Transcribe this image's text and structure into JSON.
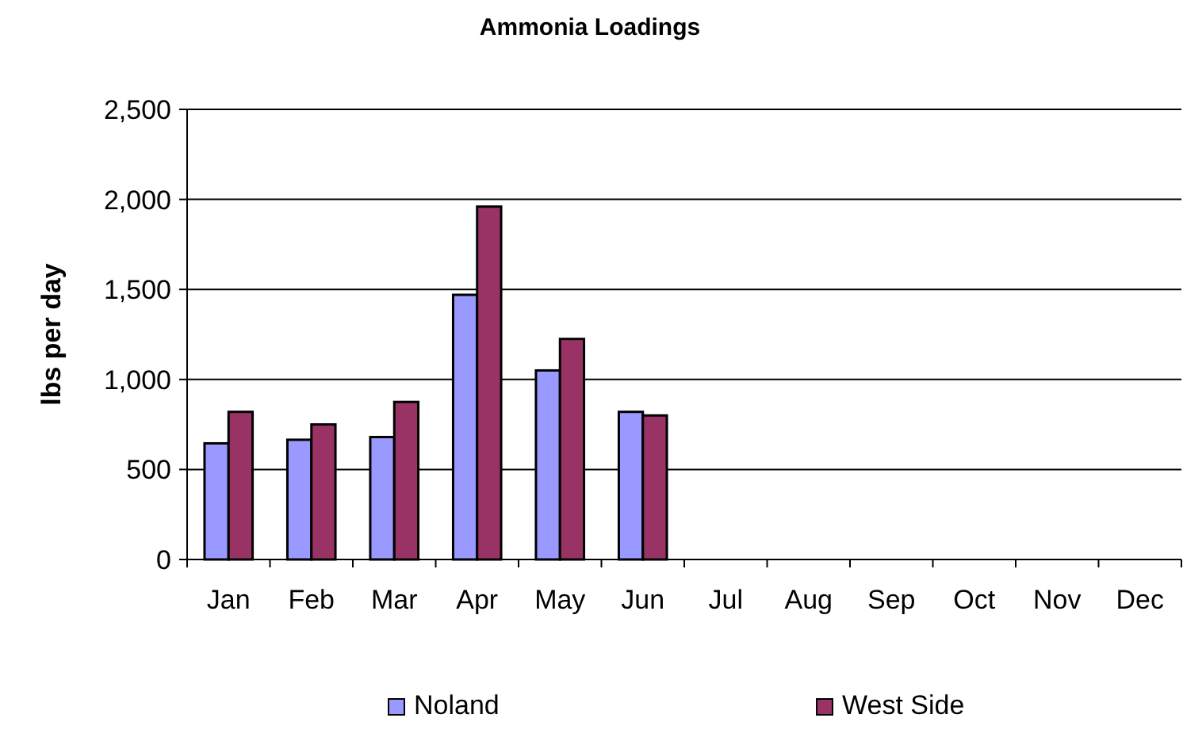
{
  "chart_data": {
    "type": "bar",
    "title": "Ammonia Loadings",
    "ylabel": "lbs per day",
    "categories": [
      "Jan",
      "Feb",
      "Mar",
      "Apr",
      "May",
      "Jun",
      "Jul",
      "Aug",
      "Sep",
      "Oct",
      "Nov",
      "Dec"
    ],
    "series": [
      {
        "name": "Noland",
        "color": "#9999ff",
        "values": [
          645,
          665,
          680,
          1470,
          1050,
          820,
          null,
          null,
          null,
          null,
          null,
          null
        ]
      },
      {
        "name": "West Side",
        "color": "#993366",
        "values": [
          820,
          750,
          875,
          1960,
          1225,
          800,
          null,
          null,
          null,
          null,
          null,
          null
        ]
      }
    ],
    "ylim": [
      0,
      2500
    ],
    "yticks": [
      0,
      {
        "value": 500,
        "label": "500"
      },
      {
        "value": 1000,
        "label": "1,000"
      },
      {
        "value": 1500,
        "label": "1,500"
      },
      {
        "value": 2000,
        "label": "2,000"
      },
      {
        "value": 2500,
        "label": "2,500"
      }
    ],
    "grid": "y",
    "legend": "bottom"
  }
}
